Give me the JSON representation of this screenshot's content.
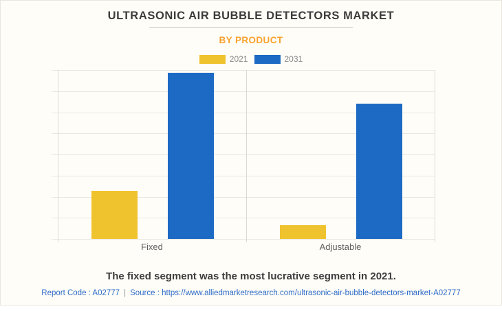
{
  "header": {
    "title": "ULTRASONIC AIR BUBBLE DETECTORS MARKET",
    "subtitle": "BY PRODUCT"
  },
  "chart_data": {
    "type": "bar",
    "title": "ULTRASONIC AIR BUBBLE DETECTORS MARKET",
    "subtitle": "BY PRODUCT",
    "categories": [
      "Fixed",
      "Adjustable"
    ],
    "series": [
      {
        "name": "2021",
        "color": "#efc32e",
        "values": [
          28.5,
          8
        ]
      },
      {
        "name": "2031",
        "color": "#1d6ac4",
        "values": [
          98.5,
          80
        ]
      }
    ],
    "xlabel": "",
    "ylabel": "",
    "ylim": [
      0,
      100
    ],
    "y_axis_tick_labels_visible": false,
    "values_are_percent_of_axis_max": true,
    "grid": true,
    "horizontal_gridlines": 9,
    "legend_position": "top-center"
  },
  "statement": "The fixed segment was the most lucrative segment in 2021.",
  "footer": {
    "report_code": "Report Code : A02777",
    "separator": "|",
    "source": "Source : https://www.alliedmarketresearch.com/ultrasonic-air-bubble-detectors-market-A02777"
  },
  "colors": {
    "accent_orange": "#f8a12c",
    "series_2021": "#efc32e",
    "series_2031": "#1d6ac4",
    "link_blue": "#2f6dc8",
    "card_background": "#fffdf8",
    "gridline": "#e9e7e1"
  }
}
